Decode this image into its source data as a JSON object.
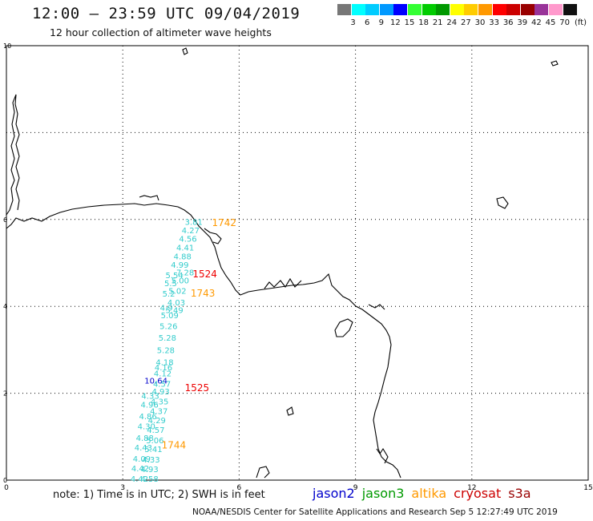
{
  "header": {
    "title": "12:00 – 23:59 UTC 09/04/2019",
    "subtitle": "12 hour collection of altimeter wave heights"
  },
  "colorbar": {
    "unit": "(ft)",
    "bins": [
      {
        "label": "",
        "color": "#777777"
      },
      {
        "label": "3",
        "color": "#00ffff"
      },
      {
        "label": "6",
        "color": "#00ccff"
      },
      {
        "label": "9",
        "color": "#0099ff"
      },
      {
        "label": "12",
        "color": "#0000ff"
      },
      {
        "label": "15",
        "color": "#33ff33"
      },
      {
        "label": "18",
        "color": "#00cc00"
      },
      {
        "label": "21",
        "color": "#009900"
      },
      {
        "label": "24",
        "color": "#ffff00"
      },
      {
        "label": "27",
        "color": "#ffcc00"
      },
      {
        "label": "30",
        "color": "#ff9900"
      },
      {
        "label": "33",
        "color": "#ff0000"
      },
      {
        "label": "36",
        "color": "#cc0000"
      },
      {
        "label": "39",
        "color": "#990000"
      },
      {
        "label": "42",
        "color": "#993399"
      },
      {
        "label": "45",
        "color": "#ff99cc"
      },
      {
        "label": "70",
        "color": "#111111"
      }
    ]
  },
  "axes": {
    "x_ticks": [
      "0",
      "3",
      "6",
      "9",
      "12",
      "15"
    ],
    "y_ticks": [
      "0",
      "2",
      "4",
      "6",
      "10"
    ]
  },
  "satellites": [
    {
      "name": "jason2",
      "color": "#0000cc"
    },
    {
      "name": "jason3",
      "color": "#009900"
    },
    {
      "name": "altika",
      "color": "#ff9900"
    },
    {
      "name": "cryosat",
      "color": "#cc0000"
    },
    {
      "name": "s3a",
      "color": "#990000"
    }
  ],
  "wave_labels": [
    {
      "text": "3.81",
      "color": "#33cccc",
      "x": 4.6,
      "y": 5.95
    },
    {
      "text": "4.27",
      "color": "#33cccc",
      "x": 4.52,
      "y": 5.76
    },
    {
      "text": "4.56",
      "color": "#33cccc",
      "x": 4.45,
      "y": 5.56
    },
    {
      "text": "4.41",
      "color": "#33cccc",
      "x": 4.38,
      "y": 5.36
    },
    {
      "text": "4.88",
      "color": "#33cccc",
      "x": 4.31,
      "y": 5.16
    },
    {
      "text": "4.99",
      "color": "#33cccc",
      "x": 4.24,
      "y": 4.96
    },
    {
      "text": "7.28",
      "color": "#33cccc",
      "x": 4.38,
      "y": 4.79
    },
    {
      "text": "5.54",
      "color": "#33cccc",
      "x": 4.1,
      "y": 4.72
    },
    {
      "text": "5.00",
      "color": "#33cccc",
      "x": 4.25,
      "y": 4.6
    },
    {
      "text": "5.5",
      "color": "#33cccc",
      "x": 4.07,
      "y": 4.54
    },
    {
      "text": "5.02",
      "color": "#33cccc",
      "x": 4.18,
      "y": 4.36
    },
    {
      "text": "5.2",
      "color": "#33cccc",
      "x": 4.02,
      "y": 4.3
    },
    {
      "text": "4.03",
      "color": "#33cccc",
      "x": 4.15,
      "y": 4.1
    },
    {
      "text": "4.9",
      "color": "#33cccc",
      "x": 3.96,
      "y": 3.98
    },
    {
      "text": "5.49",
      "color": "#33cccc",
      "x": 4.1,
      "y": 3.92
    },
    {
      "text": "5.09",
      "color": "#33cccc",
      "x": 3.98,
      "y": 3.8
    },
    {
      "text": "5.26",
      "color": "#33cccc",
      "x": 3.95,
      "y": 3.55
    },
    {
      "text": "5.28",
      "color": "#33cccc",
      "x": 3.92,
      "y": 3.28
    },
    {
      "text": "5.28",
      "color": "#33cccc",
      "x": 3.88,
      "y": 3.0
    },
    {
      "text": "4.18",
      "color": "#33cccc",
      "x": 3.85,
      "y": 2.72
    },
    {
      "text": "4.16",
      "color": "#33cccc",
      "x": 3.82,
      "y": 2.6
    },
    {
      "text": "4.12",
      "color": "#33cccc",
      "x": 3.8,
      "y": 2.46
    },
    {
      "text": "10.64",
      "color": "#0000cc",
      "x": 3.56,
      "y": 2.3
    },
    {
      "text": "4.57",
      "color": "#33cccc",
      "x": 3.78,
      "y": 2.22
    },
    {
      "text": "4.93",
      "color": "#33cccc",
      "x": 3.75,
      "y": 2.05
    },
    {
      "text": "4.33",
      "color": "#33cccc",
      "x": 3.48,
      "y": 1.95
    },
    {
      "text": "4.35",
      "color": "#33cccc",
      "x": 3.72,
      "y": 1.82
    },
    {
      "text": "4.96",
      "color": "#33cccc",
      "x": 3.46,
      "y": 1.74
    },
    {
      "text": "4.37",
      "color": "#33cccc",
      "x": 3.7,
      "y": 1.6
    },
    {
      "text": "4.86",
      "color": "#33cccc",
      "x": 3.42,
      "y": 1.48
    },
    {
      "text": "4.29",
      "color": "#33cccc",
      "x": 3.65,
      "y": 1.38
    },
    {
      "text": "4.30",
      "color": "#33cccc",
      "x": 3.38,
      "y": 1.25
    },
    {
      "text": "4.57",
      "color": "#33cccc",
      "x": 3.62,
      "y": 1.16
    },
    {
      "text": "4.88",
      "color": "#33cccc",
      "x": 3.34,
      "y": 0.98
    },
    {
      "text": "5.06",
      "color": "#33cccc",
      "x": 3.6,
      "y": 0.92
    },
    {
      "text": "4.43",
      "color": "#33cccc",
      "x": 3.3,
      "y": 0.76
    },
    {
      "text": "5.41",
      "color": "#33cccc",
      "x": 3.56,
      "y": 0.72
    },
    {
      "text": "4.09",
      "color": "#33cccc",
      "x": 3.26,
      "y": 0.5
    },
    {
      "text": "4.33",
      "color": "#33cccc",
      "x": 3.5,
      "y": 0.48
    },
    {
      "text": "4.42",
      "color": "#33cccc",
      "x": 3.22,
      "y": 0.28
    },
    {
      "text": "4.93",
      "color": "#33cccc",
      "x": 3.46,
      "y": 0.26
    },
    {
      "text": "4.42",
      "color": "#33cccc",
      "x": 3.2,
      "y": 0.04
    },
    {
      "text": "4.58",
      "color": "#33cccc",
      "x": 3.46,
      "y": 0.04
    }
  ],
  "time_labels": [
    {
      "text": "1742",
      "color": "#ff9900",
      "x": 5.3,
      "y": 5.92
    },
    {
      "text": "1524",
      "color": "#ee0000",
      "x": 4.8,
      "y": 4.74
    },
    {
      "text": "1743",
      "color": "#ff9900",
      "x": 4.75,
      "y": 4.3
    },
    {
      "text": "1525",
      "color": "#ee0000",
      "x": 4.6,
      "y": 2.12
    },
    {
      "text": "1744",
      "color": "#ff9900",
      "x": 4.0,
      "y": 0.8
    }
  ],
  "note": "note: 1) Time is in UTC; 2) SWH is in feet",
  "credit": "NOAA/NESDIS Center for Satellite Applications and Research   Sep  5 12:27:49 UTC 2019"
}
